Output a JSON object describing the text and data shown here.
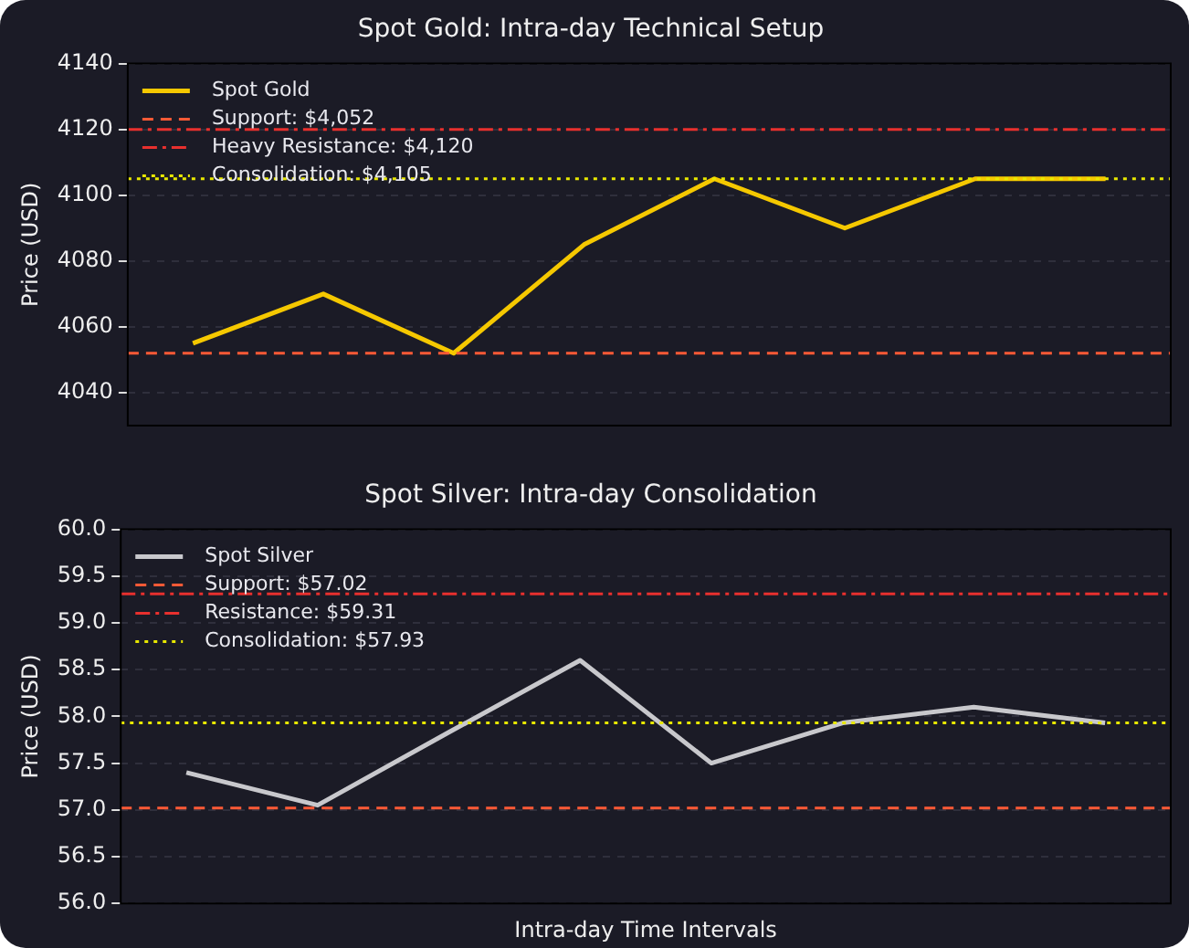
{
  "chart_data": [
    {
      "type": "line",
      "title": "Spot Gold: Intra-day Technical Setup",
      "ylabel": "Price (USD)",
      "categories": [
        null,
        null,
        null,
        null,
        null,
        null,
        null,
        null
      ],
      "series": [
        {
          "name": "Spot Gold",
          "color": "#f5c800",
          "values": [
            4055,
            4070,
            4052,
            4085,
            4105,
            4090,
            4105,
            4105
          ]
        }
      ],
      "ylim": [
        4030,
        4140
      ],
      "yticks": [
        4040,
        4060,
        4080,
        4100,
        4120,
        4140
      ],
      "ref_lines": [
        {
          "axis": "y",
          "value": 4052,
          "label": "Support: $4,052",
          "color": "#ff5a36",
          "line_style": "dashed"
        },
        {
          "axis": "y",
          "value": 4120,
          "label": "Heavy Resistance: $4,120",
          "color": "#e8302e",
          "line_style": "dashdot"
        },
        {
          "axis": "y",
          "value": 4105,
          "label": "Consolidation: $4,105",
          "color": "#e8e800",
          "line_style": "dotted"
        }
      ],
      "grid": "y",
      "legend": "top left",
      "tick_labels": "y",
      "marker": "none",
      "line_style": "solid"
    },
    {
      "type": "line",
      "title": "Spot Silver: Intra-day Consolidation",
      "ylabel": "Price (USD)",
      "xlabel": "Intra-day Time Intervals",
      "categories": [
        null,
        null,
        null,
        null,
        null,
        null,
        null,
        null
      ],
      "series": [
        {
          "name": "Spot Silver",
          "color": "#c8c8cc",
          "values": [
            57.4,
            57.05,
            57.83,
            58.6,
            57.5,
            57.93,
            58.1,
            57.93
          ]
        }
      ],
      "ylim": [
        56,
        60
      ],
      "yticks": [
        {
          "value": 56,
          "label": "56.0"
        },
        {
          "value": 56.5,
          "label": "56.5"
        },
        {
          "value": 57,
          "label": "57.0"
        },
        {
          "value": 57.5,
          "label": "57.5"
        },
        {
          "value": 58,
          "label": "58.0"
        },
        {
          "value": 58.5,
          "label": "58.5"
        },
        {
          "value": 59,
          "label": "59.0"
        },
        {
          "value": 59.5,
          "label": "59.5"
        },
        {
          "value": 60,
          "label": "60.0"
        }
      ],
      "ref_lines": [
        {
          "axis": "y",
          "value": 57.02,
          "label": "Support: $57.02",
          "color": "#ff5a36",
          "line_style": "dashed"
        },
        {
          "axis": "y",
          "value": 59.31,
          "label": "Resistance: $59.31",
          "color": "#e8302e",
          "line_style": "dashdot"
        },
        {
          "axis": "y",
          "value": 57.93,
          "label": "Consolidation: $57.93",
          "color": "#e8e800",
          "line_style": "dotted"
        }
      ],
      "grid": "y",
      "legend": "top left",
      "tick_labels": "y",
      "marker": "none",
      "line_style": "solid"
    }
  ]
}
